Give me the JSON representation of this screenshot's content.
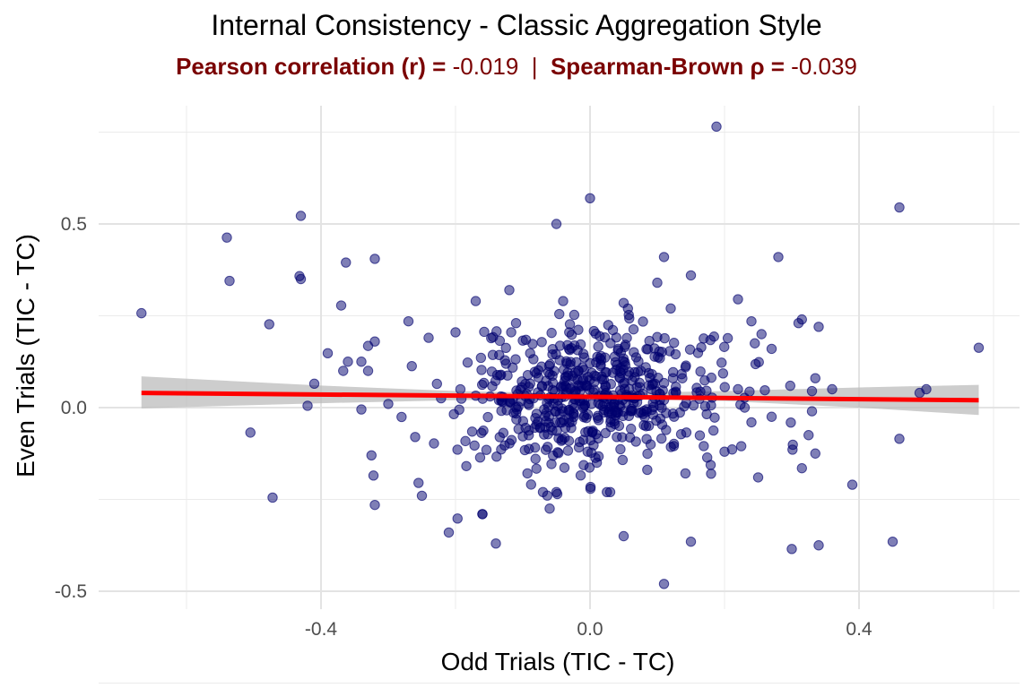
{
  "chart_data": {
    "type": "scatter",
    "title": "Internal Consistency - Classic Aggregation Style",
    "subtitle": {
      "pearson_label": "Pearson correlation (r) = ",
      "pearson_value": "-0.019",
      "separator": "  |  ",
      "spearman_label": "Spearman-Brown ρ = ",
      "spearman_value": "-0.039"
    },
    "xlabel": "Odd Trials (TIC - TC)",
    "ylabel": "Even Trials (TIC - TC)",
    "xlim": [
      -0.7,
      0.64
    ],
    "ylim": [
      -0.53,
      0.8
    ],
    "x_ticks": [
      -0.4,
      0.0,
      0.4
    ],
    "x_tick_labels": [
      "-0.4",
      "0.0",
      "0.4"
    ],
    "y_ticks": [
      -0.5,
      0.0,
      0.5
    ],
    "y_tick_labels": [
      "-0.5",
      "0.0",
      "0.5"
    ],
    "grid": true,
    "colors": {
      "points": "#00006e",
      "fit_line": "#ff0000",
      "confidence_band": "#b8b8b8",
      "subtitle": "#7a0000",
      "grid": "#ebebeb"
    },
    "fit_line": {
      "x": [
        -0.667,
        0.578
      ],
      "y": [
        0.04,
        0.02
      ]
    },
    "confidence_band": {
      "x": [
        -0.667,
        -0.4,
        -0.2,
        0.0,
        0.2,
        0.4,
        0.578
      ],
      "lower": [
        -0.002,
        0.012,
        0.02,
        0.024,
        0.018,
        0.0,
        -0.02
      ],
      "upper": [
        0.085,
        0.06,
        0.045,
        0.038,
        0.045,
        0.055,
        0.062
      ]
    },
    "outliers": [
      [
        -0.667,
        0.257
      ],
      [
        -0.54,
        0.463
      ],
      [
        -0.536,
        0.345
      ],
      [
        -0.43,
        0.522
      ],
      [
        -0.432,
        0.358
      ],
      [
        -0.43,
        0.35
      ],
      [
        -0.363,
        0.395
      ],
      [
        -0.32,
        0.405
      ],
      [
        -0.477,
        0.227
      ],
      [
        -0.472,
        -0.245
      ],
      [
        -0.505,
        -0.068
      ],
      [
        -0.42,
        0.005
      ],
      [
        -0.41,
        0.065
      ],
      [
        -0.39,
        0.148
      ],
      [
        -0.37,
        0.278
      ],
      [
        -0.367,
        0.1
      ],
      [
        -0.36,
        0.125
      ],
      [
        -0.34,
        0.125
      ],
      [
        -0.33,
        0.168
      ],
      [
        -0.32,
        0.18
      ],
      [
        -0.325,
        -0.13
      ],
      [
        -0.322,
        -0.185
      ],
      [
        -0.32,
        -0.265
      ],
      [
        -0.33,
        0.1
      ],
      [
        -0.34,
        -0.005
      ],
      [
        -0.3,
        0.01
      ],
      [
        -0.27,
        0.235
      ],
      [
        -0.265,
        0.113
      ],
      [
        -0.26,
        -0.08
      ],
      [
        -0.255,
        -0.205
      ],
      [
        -0.25,
        -0.24
      ],
      [
        -0.24,
        0.19
      ],
      [
        -0.2,
        0.205
      ],
      [
        -0.197,
        -0.302
      ],
      [
        -0.21,
        -0.34
      ],
      [
        -0.17,
        0.29
      ],
      [
        -0.16,
        -0.29
      ],
      [
        -0.16,
        -0.29
      ],
      [
        -0.14,
        -0.37
      ],
      [
        -0.12,
        0.32
      ],
      [
        -0.11,
        0.23
      ],
      [
        -0.05,
        0.5
      ],
      [
        -0.04,
        0.29
      ],
      [
        0.0,
        0.57
      ],
      [
        0.05,
        0.285
      ],
      [
        0.1,
        0.34
      ],
      [
        0.11,
        0.41
      ],
      [
        0.15,
        0.36
      ],
      [
        0.12,
        0.27
      ],
      [
        0.188,
        0.765
      ],
      [
        0.22,
        0.295
      ],
      [
        0.24,
        0.235
      ],
      [
        0.245,
        0.175
      ],
      [
        0.255,
        0.2
      ],
      [
        0.27,
        0.16
      ],
      [
        0.28,
        0.41
      ],
      [
        0.31,
        0.23
      ],
      [
        0.315,
        0.24
      ],
      [
        0.34,
        0.22
      ],
      [
        0.335,
        0.08
      ],
      [
        0.33,
        0.045
      ],
      [
        0.36,
        0.05
      ],
      [
        0.325,
        -0.075
      ],
      [
        0.33,
        -0.01
      ],
      [
        0.315,
        -0.165
      ],
      [
        0.335,
        -0.125
      ],
      [
        0.39,
        -0.21
      ],
      [
        0.3,
        -0.385
      ],
      [
        0.34,
        -0.375
      ],
      [
        0.45,
        -0.365
      ],
      [
        0.46,
        0.545
      ],
      [
        0.46,
        -0.085
      ],
      [
        0.49,
        0.04
      ],
      [
        0.5,
        0.05
      ],
      [
        0.578,
        0.163
      ],
      [
        0.11,
        -0.48
      ],
      [
        0.05,
        -0.35
      ],
      [
        0.15,
        -0.365
      ],
      [
        0.025,
        -0.23
      ],
      [
        -0.06,
        -0.275
      ],
      [
        0.25,
        -0.19
      ],
      [
        0.18,
        -0.18
      ],
      [
        0.2,
        -0.12
      ],
      [
        0.24,
        -0.04
      ],
      [
        0.23,
        0.0
      ],
      [
        0.27,
        -0.025
      ],
      [
        0.22,
        0.05
      ],
      [
        -0.07,
        -0.23
      ],
      [
        -0.05,
        -0.23
      ],
      [
        0.03,
        -0.23
      ]
    ],
    "cluster": {
      "n": 560,
      "x_center": 0.005,
      "y_center": 0.03,
      "x_spread": 0.095,
      "y_spread": 0.095,
      "seed": 7
    }
  }
}
